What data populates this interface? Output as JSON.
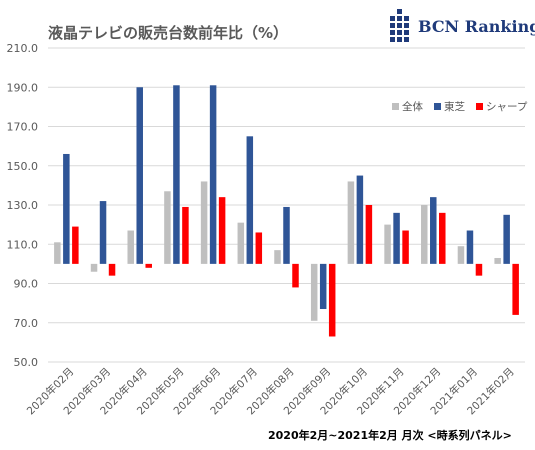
{
  "title": "液晶テレビの販売台数前年比（%）",
  "logo": {
    "text": "BCN Ranking",
    "icon": "bcn-grid-logo",
    "color": "#1f3a7a"
  },
  "footer": "2020年2月~2021年2月 月次 <時系列パネル>",
  "chart_data": {
    "type": "bar",
    "categories": [
      "2020年02月",
      "2020年03月",
      "2020年04月",
      "2020年05月",
      "2020年06月",
      "2020年07月",
      "2020年08月",
      "2020年09月",
      "2020年10月",
      "2020年11月",
      "2020年12月",
      "2021年01月",
      "2021年02月"
    ],
    "series": [
      {
        "name": "全体",
        "color": "#bfbfbf",
        "values": [
          111,
          96,
          117,
          137,
          142,
          121,
          107,
          71,
          142,
          120,
          130,
          109,
          103
        ]
      },
      {
        "name": "東芝",
        "color": "#2f5597",
        "values": [
          156,
          132,
          190,
          191,
          191,
          165,
          129,
          77,
          145,
          126,
          134,
          117,
          125
        ]
      },
      {
        "name": "シャープ",
        "color": "#ff0000",
        "values": [
          119,
          94,
          98,
          129,
          134,
          116,
          88,
          63,
          130,
          117,
          126,
          94,
          74
        ]
      }
    ],
    "baseline": 100,
    "ylim": [
      50,
      210
    ],
    "yticks": [
      "50.0",
      "70.0",
      "90.0",
      "110.0",
      "130.0",
      "150.0",
      "170.0",
      "190.0",
      "210.0"
    ],
    "grid": true,
    "legend": "top-right"
  }
}
